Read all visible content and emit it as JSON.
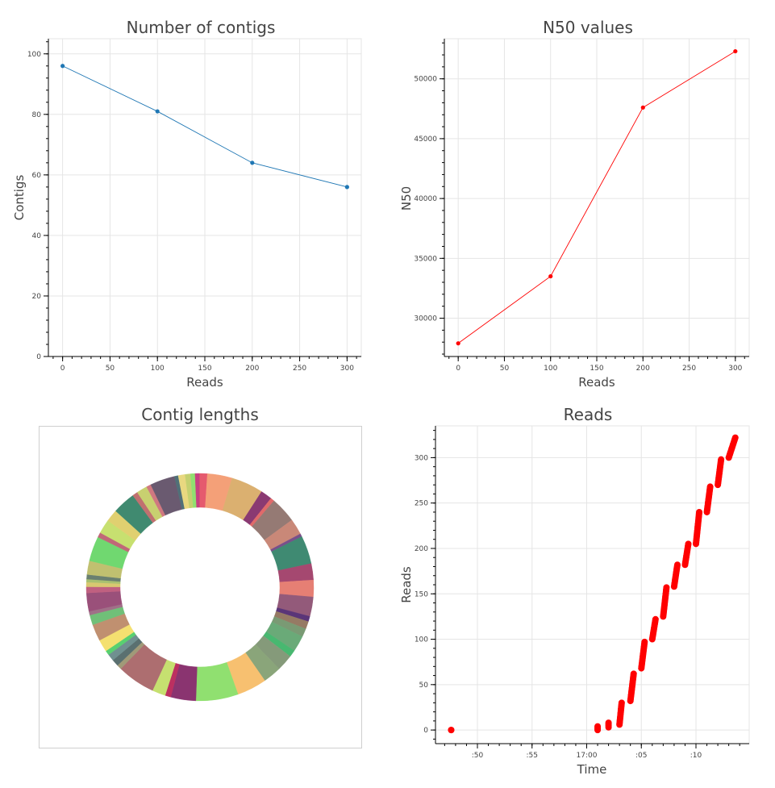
{
  "chart_data": [
    {
      "id": "contigs",
      "type": "line",
      "title": "Number of contigs",
      "xlabel": "Reads",
      "ylabel": "Contigs",
      "xlim": [
        -15,
        315
      ],
      "ylim": [
        0,
        105
      ],
      "x_ticks": [
        0,
        50,
        100,
        150,
        200,
        250,
        300
      ],
      "y_ticks": [
        0,
        20,
        40,
        60,
        80,
        100
      ],
      "grid": true,
      "series": [
        {
          "color": "#1f77b4",
          "x": [
            0,
            100,
            200,
            300
          ],
          "y": [
            96,
            81,
            64,
            56
          ]
        }
      ]
    },
    {
      "id": "n50",
      "type": "line",
      "title": "N50 values",
      "xlabel": "Reads",
      "ylabel": "N50",
      "xlim": [
        -15,
        315
      ],
      "ylim": [
        26800,
        53350
      ],
      "x_ticks": [
        0,
        50,
        100,
        150,
        200,
        250,
        300
      ],
      "y_ticks": [
        30000,
        35000,
        40000,
        45000,
        50000
      ],
      "grid": true,
      "series": [
        {
          "color": "#ff0000",
          "x": [
            0,
            100,
            200,
            300
          ],
          "y": [
            27900,
            33500,
            47600,
            52300
          ]
        }
      ]
    },
    {
      "id": "lengths",
      "type": "pie",
      "title": "Contig lengths",
      "donut": true,
      "colors": [
        "#e55a6e",
        "#f4a078",
        "#dbb070",
        "#8a3a72",
        "#e06a6a",
        "#957a74",
        "#c98878",
        "#78508a",
        "#3f8a72",
        "#a54870",
        "#e67f74",
        "#935a7a",
        "#5a3578",
        "#967a64",
        "#7a9a74",
        "#6aaa78",
        "#48b870",
        "#859a7a",
        "#8aa57a",
        "#f7c070",
        "#90e070",
        "#8a3470",
        "#bc3060",
        "#c6e070",
        "#ad6e70",
        "#a09a78",
        "#5a7070",
        "#709090",
        "#58d070",
        "#f4e070",
        "#c09070",
        "#70c078",
        "#a07088",
        "#9a507a",
        "#c06080",
        "#d8c870",
        "#a8c070",
        "#6a8070",
        "#c0c070",
        "#70d870",
        "#c06878",
        "#c7e070",
        "#e0d070",
        "#408a70",
        "#c07070",
        "#c8d070",
        "#d07880",
        "#6a5a70",
        "#507078",
        "#e8d880",
        "#c4d070",
        "#90e070",
        "#c84080"
      ],
      "values": [
        2.1,
        6.5,
        8.4,
        3.0,
        1.0,
        6.8,
        4.2,
        0.8,
        7.4,
        4.3,
        4.4,
        5.1,
        1.4,
        2.0,
        2.2,
        4.2,
        1.8,
        4.3,
        4.8,
        7.8,
        11.1,
        6.6,
        1.5,
        3.5,
        10.0,
        1.2,
        1.8,
        1.8,
        1.2,
        3.2,
        4.4,
        2.6,
        1.0,
        4.8,
        1.6,
        1.2,
        0.8,
        1.2,
        3.6,
        6.5,
        1.3,
        3.7,
        3.2,
        6.0,
        1.4,
        2.8,
        1.2,
        6.5,
        1.0,
        1.8,
        1.4,
        1.2,
        1.1
      ]
    },
    {
      "id": "reads",
      "type": "scatter",
      "title": "Reads",
      "xlabel": "Time",
      "ylabel": "Reads",
      "x_start": "16:44",
      "x_ticks": [
        ":50",
        ":55",
        "17:00",
        ":05",
        ":10"
      ],
      "y_ticks": [
        0,
        50,
        100,
        150,
        200,
        250,
        300
      ],
      "ylim": [
        -15,
        335
      ],
      "grid": true,
      "color": "#ff0000",
      "segments": [
        {
          "time_min": [
            47.6,
            47.6
          ],
          "reads": [
            0,
            0
          ]
        },
        {
          "time_min": [
            61.0,
            61.0
          ],
          "reads": [
            0,
            4
          ]
        },
        {
          "time_min": [
            62.0,
            62.0
          ],
          "reads": [
            3,
            8
          ]
        },
        {
          "time_min": [
            63.0,
            63.2
          ],
          "reads": [
            6,
            30
          ]
        },
        {
          "time_min": [
            64.0,
            64.3
          ],
          "reads": [
            32,
            62
          ]
        },
        {
          "time_min": [
            65.0,
            65.3
          ],
          "reads": [
            68,
            97
          ]
        },
        {
          "time_min": [
            66.0,
            66.3
          ],
          "reads": [
            100,
            122
          ]
        },
        {
          "time_min": [
            67.0,
            67.3
          ],
          "reads": [
            125,
            157
          ]
        },
        {
          "time_min": [
            68.0,
            68.3
          ],
          "reads": [
            158,
            182
          ]
        },
        {
          "time_min": [
            69.0,
            69.3
          ],
          "reads": [
            182,
            205
          ]
        },
        {
          "time_min": [
            70.0,
            70.3
          ],
          "reads": [
            205,
            240
          ]
        },
        {
          "time_min": [
            71.0,
            71.3
          ],
          "reads": [
            240,
            268
          ]
        },
        {
          "time_min": [
            72.0,
            72.3
          ],
          "reads": [
            270,
            298
          ]
        },
        {
          "time_min": [
            73.0,
            73.6
          ],
          "reads": [
            300,
            322
          ]
        }
      ]
    }
  ]
}
